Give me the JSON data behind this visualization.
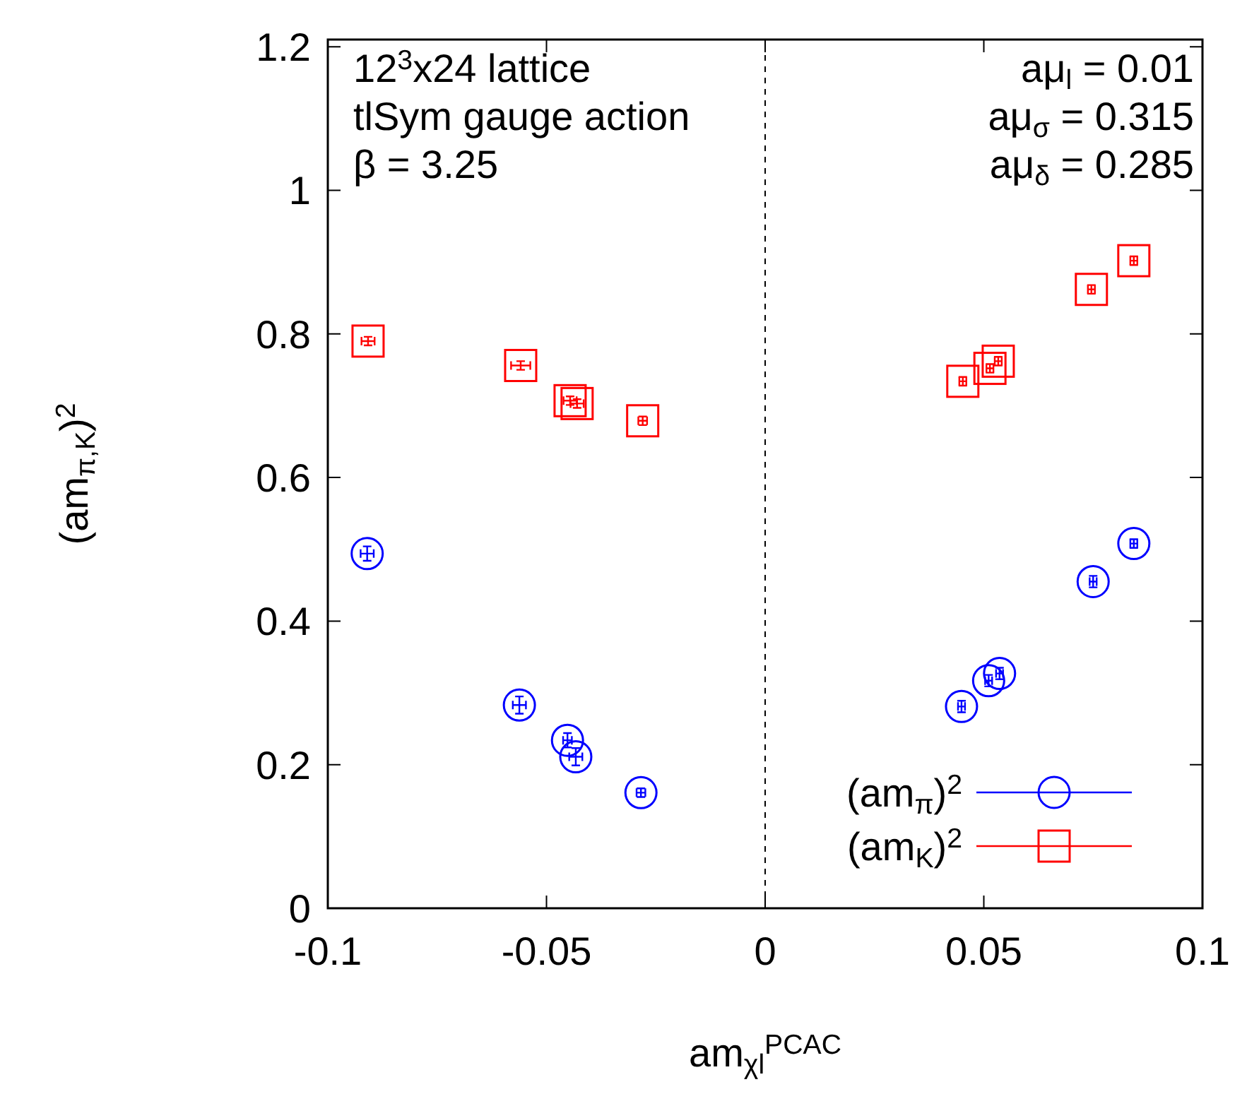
{
  "chart_data": {
    "type": "scatter",
    "xlabel": "am$_{χl}$$^{PCAC}$",
    "ylabel": "(am$_{π,K}$)$^{2}$",
    "xlim": [
      -0.1,
      0.1
    ],
    "xticks": [
      -0.1,
      -0.05,
      0,
      0.05,
      0.1
    ],
    "ylim": [
      0,
      1.21
    ],
    "yticks": [
      0,
      0.2,
      0.4,
      0.6,
      0.8,
      1,
      1.2
    ],
    "grid": false,
    "legend": "bottom right",
    "ref_lines": [
      {
        "axis": "x",
        "value": 0,
        "color": "#000000",
        "line_style": "dashed"
      }
    ],
    "annotations": [
      "12$^{3}$x24 lattice",
      "tlSym gauge action",
      "β = 3.25",
      "aμ$_{l}$ = 0.01",
      "aμ$_{σ}$ = 0.315",
      "aμ$_{δ}$ = 0.285"
    ],
    "series": [
      {
        "name": "(am$_{π}$)$^{2}$",
        "color": "#0000ff",
        "marker": "circle",
        "x": [
          -0.091,
          -0.0562,
          -0.0452,
          -0.0433,
          -0.0284,
          0.0449,
          0.0511,
          0.0536,
          0.075,
          0.0843
        ],
        "values": [
          0.494,
          0.283,
          0.234,
          0.211,
          0.161,
          0.281,
          0.317,
          0.327,
          0.455,
          0.508
        ],
        "errors": [
          0.01,
          0.012,
          0.01,
          0.012,
          0.006,
          0.008,
          0.008,
          0.008,
          0.008,
          0.006
        ],
        "xerrors": [
          0.0015,
          0.0015,
          0.001,
          0.0015,
          0.001,
          0.0008,
          0.0008,
          0.0008,
          0.0008,
          0.0008
        ]
      },
      {
        "name": "(am$_{K}$)$^{2}$",
        "color": "#ff0000",
        "marker": "square",
        "x": [
          -0.0908,
          -0.0559,
          -0.0446,
          -0.043,
          -0.028,
          0.0452,
          0.0514,
          0.0533,
          0.0746,
          0.0843
        ],
        "values": [
          0.79,
          0.756,
          0.707,
          0.703,
          0.679,
          0.734,
          0.752,
          0.762,
          0.862,
          0.902
        ],
        "errors": [
          0.006,
          0.006,
          0.006,
          0.006,
          0.006,
          0.006,
          0.006,
          0.006,
          0.006,
          0.006
        ],
        "xerrors": [
          0.0015,
          0.0022,
          0.0015,
          0.0015,
          0.001,
          0.0008,
          0.0008,
          0.0008,
          0.0008,
          0.0008
        ]
      }
    ]
  }
}
